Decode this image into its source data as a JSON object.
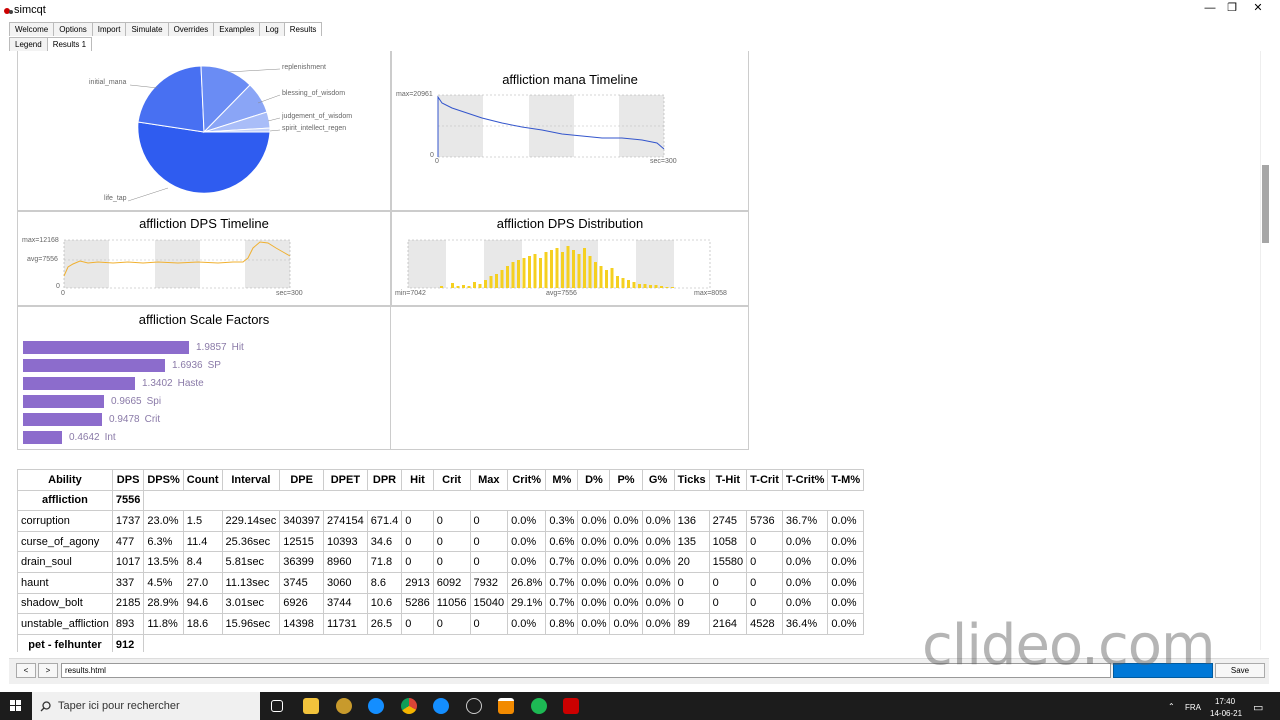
{
  "window": {
    "title": "simcqt",
    "minimize": "—",
    "maximize": "❐",
    "close": "✕"
  },
  "tabs": [
    "Welcome",
    "Options",
    "Import",
    "Simulate",
    "Overrides",
    "Examples",
    "Log",
    "Results"
  ],
  "subtabs": [
    "Legend",
    "Results 1"
  ],
  "pie": {
    "labels": [
      "initial_mana",
      "replenishment",
      "blessing_of_wisdom",
      "judgement_of_wisdom",
      "spirit_intellect_regen",
      "life_tap"
    ]
  },
  "mana_timeline": {
    "title": "affliction mana Timeline",
    "max_label": "max=20961",
    "zero": "0",
    "x0": "0",
    "xend": "sec=300"
  },
  "dps_timeline": {
    "title": "affliction DPS Timeline",
    "max_label": "max=12168",
    "avg_label": "avg=7556",
    "zero": "0",
    "x0": "0",
    "xend": "sec=300"
  },
  "dps_dist": {
    "title": "affliction DPS Distribution",
    "min_label": "min=7042",
    "avg_label": "avg=7556",
    "max_label": "max=8058"
  },
  "scale": {
    "title": "affliction Scale Factors",
    "items": [
      {
        "value": "1.9857",
        "stat": "Hit",
        "v": 1.9857
      },
      {
        "value": "1.6936",
        "stat": "SP",
        "v": 1.6936
      },
      {
        "value": "1.3402",
        "stat": "Haste",
        "v": 1.3402
      },
      {
        "value": "0.9665",
        "stat": "Spi",
        "v": 0.9665
      },
      {
        "value": "0.9478",
        "stat": "Crit",
        "v": 0.9478
      },
      {
        "value": "0.4642",
        "stat": "Int",
        "v": 0.4642
      }
    ]
  },
  "table": {
    "headers": [
      "Ability",
      "DPS",
      "DPS%",
      "Count",
      "Interval",
      "DPE",
      "DPET",
      "DPR",
      "Hit",
      "Crit",
      "Max",
      "Crit%",
      "M%",
      "D%",
      "P%",
      "G%",
      "Ticks",
      "T-Hit",
      "T-Crit",
      "T-Crit%",
      "T-M%"
    ],
    "player_row": [
      "affliction",
      "7556"
    ],
    "rows": [
      [
        "corruption",
        "1737",
        "23.0%",
        "1.5",
        "229.14sec",
        "340397",
        "274154",
        "671.4",
        "0",
        "0",
        "0",
        "0.0%",
        "0.3%",
        "0.0%",
        "0.0%",
        "0.0%",
        "136",
        "2745",
        "5736",
        "36.7%",
        "0.0%"
      ],
      [
        "curse_of_agony",
        "477",
        "6.3%",
        "11.4",
        "25.36sec",
        "12515",
        "10393",
        "34.6",
        "0",
        "0",
        "0",
        "0.0%",
        "0.6%",
        "0.0%",
        "0.0%",
        "0.0%",
        "135",
        "1058",
        "0",
        "0.0%",
        "0.0%"
      ],
      [
        "drain_soul",
        "1017",
        "13.5%",
        "8.4",
        "5.81sec",
        "36399",
        "8960",
        "71.8",
        "0",
        "0",
        "0",
        "0.0%",
        "0.7%",
        "0.0%",
        "0.0%",
        "0.0%",
        "20",
        "15580",
        "0",
        "0.0%",
        "0.0%"
      ],
      [
        "haunt",
        "337",
        "4.5%",
        "27.0",
        "11.13sec",
        "3745",
        "3060",
        "8.6",
        "2913",
        "6092",
        "7932",
        "26.8%",
        "0.7%",
        "0.0%",
        "0.0%",
        "0.0%",
        "0",
        "0",
        "0",
        "0.0%",
        "0.0%"
      ],
      [
        "shadow_bolt",
        "2185",
        "28.9%",
        "94.6",
        "3.01sec",
        "6926",
        "3744",
        "10.6",
        "5286",
        "11056",
        "15040",
        "29.1%",
        "0.7%",
        "0.0%",
        "0.0%",
        "0.0%",
        "0",
        "0",
        "0",
        "0.0%",
        "0.0%"
      ],
      [
        "unstable_affliction",
        "893",
        "11.8%",
        "18.6",
        "15.96sec",
        "14398",
        "11731",
        "26.5",
        "0",
        "0",
        "0",
        "0.0%",
        "0.8%",
        "0.0%",
        "0.0%",
        "0.0%",
        "89",
        "2164",
        "4528",
        "36.4%",
        "0.0%"
      ]
    ],
    "pet_row": [
      "pet - felhunter",
      "912"
    ]
  },
  "bottom": {
    "back": "<",
    "forward": ">",
    "url": "results.html",
    "save": "Save"
  },
  "taskbar": {
    "search_placeholder": "Taper ici pour rechercher",
    "lang": "FRA",
    "time": "17:40",
    "date": "14-06-21"
  },
  "watermark": "clideo.com",
  "colors": {
    "pie_blue": "#2f5cf0",
    "timeline_blue": "#3355cc",
    "dps_orange": "#f0b030",
    "dist_yellow": "#f5d020",
    "scale_purple": "#8c6ccc"
  }
}
